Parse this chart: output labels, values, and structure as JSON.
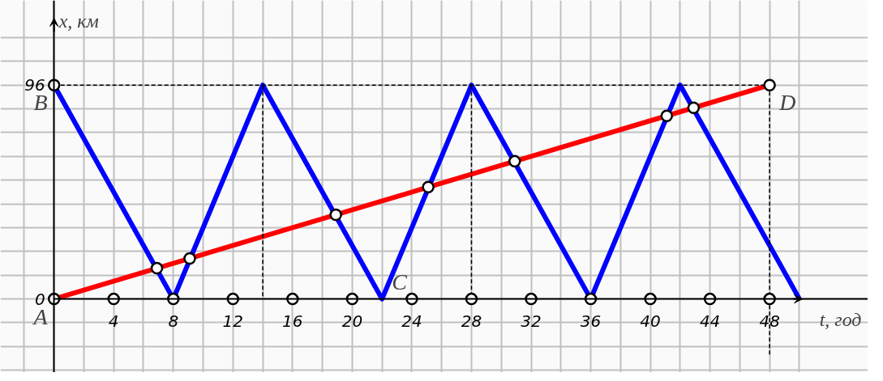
{
  "chart_data": {
    "type": "line",
    "xlabel": "t, год",
    "ylabel": "x, км",
    "xlim": [
      -3.6,
      54.6
    ],
    "ylim": [
      -33,
      134
    ],
    "xticks": [
      {
        "value": -2,
        "label": null
      },
      {
        "value": 0,
        "label": null
      },
      {
        "value": 2,
        "label": null
      },
      4,
      {
        "value": 6,
        "label": null
      },
      8,
      {
        "value": 10,
        "label": null
      },
      12,
      {
        "value": 14,
        "label": null
      },
      16,
      {
        "value": 18,
        "label": null
      },
      20,
      {
        "value": 22,
        "label": null
      },
      24,
      {
        "value": 26,
        "label": null
      },
      28,
      {
        "value": 30,
        "label": null
      },
      32,
      {
        "value": 34,
        "label": null
      },
      36,
      {
        "value": 38,
        "label": null
      },
      40,
      {
        "value": 42,
        "label": null
      },
      44,
      {
        "value": 46,
        "label": null
      },
      48,
      {
        "value": 50,
        "label": null
      }
    ],
    "yticks": [
      {
        "value": -32,
        "label": null
      },
      {
        "value": -21.33,
        "label": null
      },
      {
        "value": -10.67,
        "label": null
      },
      0,
      {
        "value": 10.67,
        "label": null
      },
      {
        "value": 21.33,
        "label": null
      },
      {
        "value": 32,
        "label": null
      },
      {
        "value": 42.67,
        "label": null
      },
      {
        "value": 53.33,
        "label": null
      },
      {
        "value": 64,
        "label": null
      },
      {
        "value": 74.67,
        "label": null
      },
      {
        "value": 85.33,
        "label": null
      },
      96,
      {
        "value": 106.67,
        "label": null
      },
      {
        "value": 117.33,
        "label": null
      }
    ],
    "grid": true,
    "series": [
      {
        "color": "#0000ff",
        "line_style": "solid",
        "x": [
          0,
          8,
          14,
          22,
          28,
          36,
          42,
          50
        ],
        "values": [
          96,
          0,
          96,
          0,
          96,
          0,
          96,
          0
        ]
      },
      {
        "color": "#ff0000",
        "line_style": "solid",
        "x": [
          0,
          48
        ],
        "values": [
          0,
          96
        ]
      },
      {
        "color": "#000000",
        "line_style": "dashed",
        "x": [
          0,
          48
        ],
        "values": [
          96,
          96
        ]
      },
      {
        "color": "#000000",
        "line_style": "dashed",
        "x": [
          14,
          14
        ],
        "values": [
          96,
          0
        ]
      },
      {
        "color": "#000000",
        "line_style": "dashed",
        "x": [
          28,
          28
        ],
        "values": [
          96,
          0
        ]
      },
      {
        "color": "#000000",
        "line_style": "dashed",
        "x": [
          48,
          48
        ],
        "values": [
          96,
          -26
        ]
      },
      {
        "type": "scatter",
        "color": "#ffffff",
        "marker": "circle",
        "x": [
          0,
          6.9,
          9.1,
          18.9,
          25.1,
          30.9,
          41.1,
          42.9,
          48,
          0,
          4,
          8,
          12,
          16,
          20,
          24,
          28,
          32,
          36,
          40,
          44,
          48
        ],
        "values": [
          96,
          13.8,
          18.2,
          37.8,
          50.2,
          61.8,
          82.2,
          85.8,
          96,
          0,
          0,
          0,
          0,
          0,
          0,
          0,
          0,
          0,
          0,
          0,
          0,
          0
        ]
      }
    ],
    "annotations": [
      {
        "text": "A",
        "x": 0,
        "y": 0
      },
      {
        "text": "B",
        "x": 0,
        "y": 96
      },
      {
        "text": "C",
        "x": 22,
        "y": 0
      },
      {
        "text": "D",
        "x": 48,
        "y": 96
      }
    ]
  }
}
